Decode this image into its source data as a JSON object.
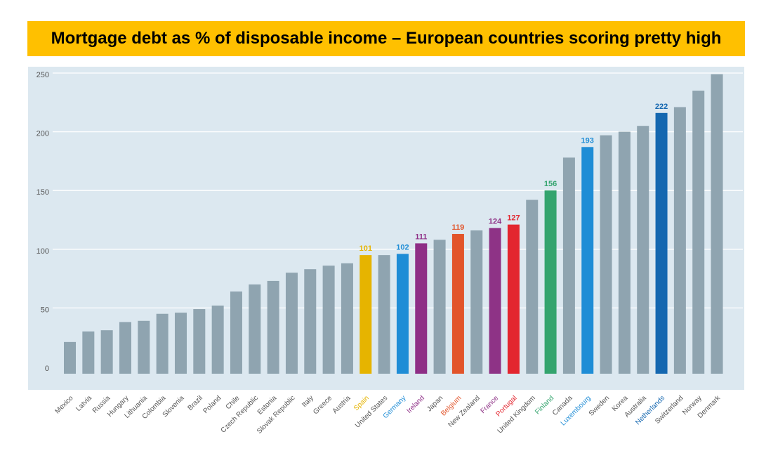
{
  "title": "Mortgage debt as % of disposable income – European countries scoring pretty high",
  "chart_data": {
    "type": "bar",
    "title": "Mortgage debt as % of disposable income – European countries scoring pretty high",
    "xlabel": "",
    "ylabel": "",
    "ylim": [
      0,
      250
    ],
    "yticks": [
      "0",
      "50",
      "100",
      "150",
      "200",
      "250"
    ],
    "grid": true,
    "legend": "none",
    "background_color": "#dce8f0",
    "default_bar_color": "#8fa4b0",
    "categories": [
      "Mexico",
      "Latvia",
      "Russia",
      "Hungary",
      "Lithuania",
      "Colombia",
      "Slovenia",
      "Brazil",
      "Poland",
      "Chile",
      "Czech Republic",
      "Estonia",
      "Slovak Republic",
      "Italy",
      "Greece",
      "Austria",
      "Spain",
      "United States",
      "Germany",
      "Ireland",
      "Japan",
      "Belgium",
      "New Zealand",
      "France",
      "Portugal",
      "United Kingdom",
      "Finland",
      "Canada",
      "Luxembourg",
      "Sweden",
      "Korea",
      "Australia",
      "Netherlands",
      "Switzerland",
      "Norway",
      "Denmark"
    ],
    "values": [
      27,
      36,
      37,
      44,
      45,
      51,
      52,
      55,
      58,
      70,
      76,
      79,
      86,
      89,
      92,
      94,
      101,
      101,
      102,
      111,
      114,
      119,
      122,
      124,
      127,
      148,
      156,
      184,
      193,
      203,
      206,
      211,
      222,
      227,
      241,
      255
    ],
    "highlights": [
      {
        "category": "Spain",
        "label": "101",
        "color": "#e6b400"
      },
      {
        "category": "Germany",
        "label": "102",
        "color": "#1f8dd6"
      },
      {
        "category": "Ireland",
        "label": "111",
        "color": "#8e2e86"
      },
      {
        "category": "Belgium",
        "label": "119",
        "color": "#e2542a"
      },
      {
        "category": "France",
        "label": "124",
        "color": "#8e3386"
      },
      {
        "category": "Portugal",
        "label": "127",
        "color": "#e3262f"
      },
      {
        "category": "Finland",
        "label": "156",
        "color": "#34a46e"
      },
      {
        "category": "Luxembourg",
        "label": "193",
        "color": "#1f8dd6"
      },
      {
        "category": "Netherlands",
        "label": "222",
        "color": "#1467b0"
      }
    ]
  }
}
